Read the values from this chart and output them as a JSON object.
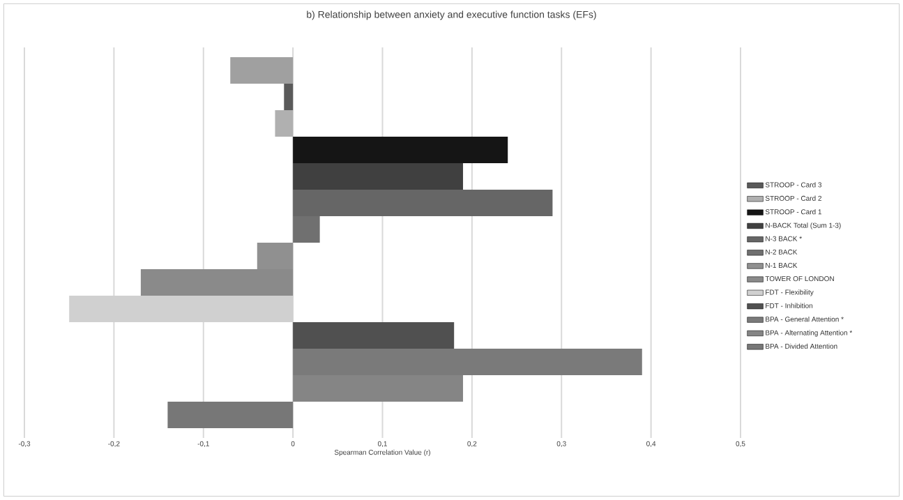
{
  "chart_data": {
    "type": "bar",
    "orientation": "horizontal",
    "title": "b) Relationship between anxiety and executive function tasks (EFs)",
    "xlabel": "Spearman Correlation Value (r)",
    "categories": [
      null
    ],
    "series": [
      {
        "color": "#a0a0a0",
        "values": [
          -0.07
        ]
      },
      {
        "name": "STROOP - Card 3",
        "color": "#5a5a5a",
        "values": [
          -0.01
        ]
      },
      {
        "name": "STROOP - Card 2",
        "color": "#b0b0b0",
        "values": [
          -0.02
        ]
      },
      {
        "name": "STROOP - Card 1",
        "color": "#151515",
        "values": [
          0.24
        ]
      },
      {
        "name": "N-BACK Total (Sum 1-3)",
        "color": "#404040",
        "values": [
          0.19
        ]
      },
      {
        "name": "N-3 BACK *",
        "color": "#666666",
        "values": [
          0.29
        ]
      },
      {
        "name": "N-2 BACK",
        "color": "#707070",
        "values": [
          0.03
        ]
      },
      {
        "name": "N-1 BACK",
        "color": "#909090",
        "values": [
          -0.04
        ]
      },
      {
        "name": "TOWER OF LONDON",
        "color": "#8a8a8a",
        "values": [
          -0.17
        ]
      },
      {
        "name": "FDT - Flexibility",
        "color": "#d0d0d0",
        "values": [
          -0.25
        ]
      },
      {
        "name": "FDT - Inhibition",
        "color": "#505050",
        "values": [
          0.18
        ]
      },
      {
        "name": "BPA - General Attention *",
        "color": "#7a7a7a",
        "values": [
          0.39
        ]
      },
      {
        "name": "BPA - Alternating Attention *",
        "color": "#858585",
        "values": [
          0.19
        ]
      },
      {
        "name": "BPA - Divided Attention",
        "color": "#777777",
        "values": [
          -0.14
        ]
      }
    ],
    "xlim": [
      -0.3,
      0.5
    ],
    "xticks": [
      {
        "value": -0.3,
        "label": "-0,3"
      },
      {
        "value": -0.2,
        "label": "-0,2"
      },
      {
        "value": -0.1,
        "label": "-0,1"
      },
      0,
      {
        "value": 0.1,
        "label": "0,1"
      },
      {
        "value": 0.2,
        "label": "0,2"
      },
      {
        "value": 0.3,
        "label": "0,3"
      },
      {
        "value": 0.4,
        "label": "0,4"
      },
      {
        "value": 0.5,
        "label": "0,5"
      }
    ],
    "grid": "x",
    "legend": "right"
  }
}
